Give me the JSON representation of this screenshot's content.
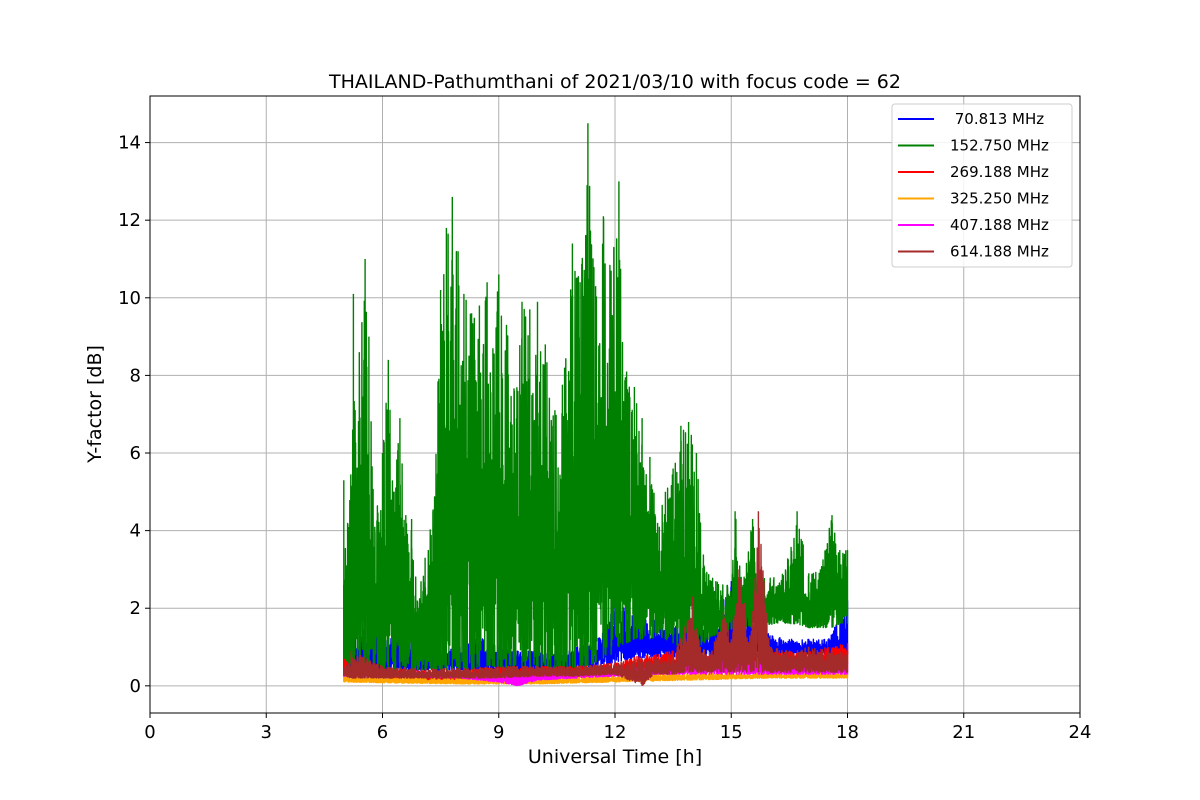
{
  "chart_data": {
    "type": "line",
    "title": "THAILAND-Pathumthani of 2021/03/10 with focus code = 62",
    "xlabel": "Universal Time [h]",
    "ylabel": "Y-factor [dB]",
    "xlim": [
      0,
      24
    ],
    "ylim": [
      -0.7,
      15.2
    ],
    "xticks": [
      0,
      3,
      6,
      9,
      12,
      15,
      18,
      21,
      24
    ],
    "yticks": [
      0,
      2,
      4,
      6,
      8,
      10,
      12,
      14
    ],
    "grid": true,
    "legend_position": "top-right",
    "series": [
      {
        "name": " 70.813 MHz",
        "color": "#0000ff",
        "envelope": {
          "x": [
            5.0,
            5.3,
            5.7,
            6.0,
            6.5,
            7.0,
            7.5,
            8.0,
            8.5,
            9.0,
            9.5,
            10.0,
            10.5,
            11.0,
            11.5,
            12.0,
            12.5,
            13.0,
            13.5,
            14.0,
            14.5,
            15.0,
            15.5,
            16.0,
            16.5,
            17.0,
            17.5,
            18.0
          ],
          "low": [
            0.4,
            0.4,
            0.4,
            0.4,
            0.4,
            0.4,
            0.4,
            0.4,
            0.4,
            0.4,
            0.4,
            0.4,
            0.4,
            0.45,
            0.5,
            0.6,
            0.7,
            0.75,
            0.75,
            0.75,
            0.75,
            0.8,
            0.8,
            0.8,
            0.8,
            0.8,
            0.8,
            0.8
          ],
          "high": [
            2.6,
            1.2,
            1.7,
            1.3,
            1.4,
            0.9,
            0.9,
            1.0,
            1.3,
            1.0,
            0.9,
            0.9,
            0.8,
            1.0,
            1.1,
            2.1,
            2.0,
            1.7,
            1.6,
            1.7,
            1.6,
            2.7,
            2.0,
            1.3,
            1.2,
            1.2,
            1.2,
            2.2
          ]
        }
      },
      {
        "name": "152.750 MHz",
        "color": "#008000",
        "envelope": {
          "x": [
            5.0,
            5.1,
            5.25,
            5.4,
            5.55,
            5.65,
            5.8,
            6.0,
            6.15,
            6.3,
            6.45,
            6.6,
            6.75,
            6.9,
            7.1,
            7.3,
            7.5,
            7.65,
            7.8,
            7.95,
            8.1,
            8.3,
            8.5,
            8.7,
            8.85,
            9.0,
            9.2,
            9.4,
            9.6,
            9.8,
            10.0,
            10.2,
            10.45,
            10.7,
            10.9,
            11.1,
            11.3,
            11.5,
            11.7,
            11.9,
            12.1,
            12.3,
            12.5,
            12.7,
            12.9,
            13.1,
            13.3,
            13.5,
            13.7,
            13.9,
            14.1,
            14.3,
            14.6,
            14.9,
            15.1,
            15.3,
            15.55,
            15.8,
            16.1,
            16.4,
            16.7,
            17.0,
            17.3,
            17.6,
            17.8,
            18.0
          ],
          "low": [
            0.4,
            0.4,
            0.4,
            0.4,
            0.4,
            0.4,
            0.4,
            0.4,
            0.4,
            0.4,
            0.4,
            0.4,
            0.4,
            0.4,
            0.4,
            0.4,
            0.4,
            0.4,
            0.4,
            0.4,
            0.4,
            0.4,
            0.5,
            0.5,
            0.5,
            0.5,
            0.4,
            0.4,
            0.4,
            0.4,
            0.4,
            0.4,
            0.4,
            0.4,
            0.4,
            0.4,
            0.5,
            0.6,
            0.7,
            0.8,
            1.0,
            1.1,
            1.2,
            1.2,
            1.2,
            1.3,
            1.2,
            1.1,
            1.0,
            1.0,
            1.0,
            1.1,
            1.3,
            1.4,
            1.5,
            1.5,
            1.5,
            1.5,
            1.6,
            1.6,
            1.6,
            1.5,
            1.5,
            1.5,
            1.6,
            1.6
          ],
          "high": [
            5.3,
            4.2,
            10.1,
            8.6,
            11.0,
            9.0,
            4.1,
            6.0,
            8.4,
            5.0,
            6.9,
            4.4,
            4.3,
            2.2,
            3.3,
            4.5,
            10.2,
            11.8,
            12.6,
            11.2,
            10.1,
            9.6,
            9.8,
            10.4,
            8.7,
            10.6,
            9.3,
            7.6,
            9.9,
            9.7,
            9.9,
            8.8,
            7.1,
            8.2,
            11.4,
            10.4,
            14.5,
            10.3,
            12.1,
            10.7,
            13.0,
            8.1,
            7.7,
            6.9,
            5.9,
            4.2,
            5.0,
            5.6,
            6.7,
            6.8,
            6.0,
            3.1,
            2.7,
            2.6,
            4.5,
            2.6,
            4.3,
            2.8,
            2.8,
            3.0,
            4.5,
            2.9,
            3.0,
            4.4,
            3.5,
            3.5
          ]
        }
      },
      {
        "name": "269.188 MHz",
        "color": "#ff0000",
        "envelope": {
          "x": [
            5.0,
            6.0,
            7.0,
            8.0,
            9.0,
            10.0,
            11.0,
            12.0,
            12.5,
            13.0,
            13.5,
            14.0,
            14.5,
            15.0,
            16.0,
            17.0,
            17.5,
            18.0
          ],
          "low": [
            0.22,
            0.2,
            0.15,
            0.1,
            0.1,
            0.15,
            0.2,
            0.3,
            0.35,
            0.4,
            0.45,
            0.45,
            0.45,
            0.5,
            0.5,
            0.5,
            0.55,
            0.55
          ],
          "high": [
            0.7,
            0.5,
            0.4,
            0.4,
            0.5,
            0.5,
            0.5,
            0.6,
            0.75,
            0.8,
            0.9,
            0.8,
            0.8,
            0.9,
            0.9,
            0.9,
            1.0,
            1.1
          ]
        }
      },
      {
        "name": "325.250 MHz",
        "color": "#ffa500",
        "envelope": {
          "x": [
            5.0,
            6.0,
            8.0,
            10.0,
            12.0,
            14.0,
            16.0,
            18.0
          ],
          "low": [
            0.1,
            0.08,
            0.05,
            0.05,
            0.1,
            0.15,
            0.2,
            0.2
          ],
          "high": [
            0.25,
            0.22,
            0.2,
            0.22,
            0.28,
            0.35,
            0.35,
            0.35
          ]
        }
      },
      {
        "name": "407.188 MHz",
        "color": "#ff00ff",
        "envelope": {
          "x": [
            5.0,
            6.0,
            8.0,
            9.0,
            9.5,
            10.0,
            12.0,
            13.0,
            14.0,
            15.0,
            16.0,
            17.0,
            18.0
          ],
          "low": [
            0.25,
            0.25,
            0.2,
            0.1,
            0.0,
            0.15,
            0.25,
            0.3,
            0.3,
            0.3,
            0.3,
            0.3,
            0.3
          ],
          "high": [
            0.35,
            0.35,
            0.35,
            0.3,
            0.3,
            0.35,
            0.4,
            0.5,
            0.6,
            0.8,
            0.7,
            0.6,
            0.6
          ]
        }
      },
      {
        "name": "614.188 MHz",
        "color": "#a52a2a",
        "envelope": {
          "x": [
            5.0,
            5.2,
            6.0,
            7.0,
            8.0,
            9.0,
            10.0,
            11.0,
            12.0,
            12.7,
            13.0,
            13.5,
            13.8,
            14.0,
            14.2,
            14.5,
            14.8,
            15.0,
            15.2,
            15.5,
            15.7,
            16.0,
            16.5,
            17.0,
            17.5,
            18.0
          ],
          "low": [
            0.25,
            0.2,
            0.2,
            0.2,
            0.2,
            0.2,
            0.25,
            0.25,
            0.3,
            0.0,
            0.3,
            0.3,
            0.35,
            0.35,
            0.35,
            0.35,
            0.35,
            0.35,
            0.35,
            0.35,
            0.35,
            0.35,
            0.35,
            0.35,
            0.35,
            0.35
          ],
          "high": [
            0.45,
            0.9,
            0.5,
            0.45,
            0.45,
            0.5,
            0.5,
            0.5,
            0.6,
            0.7,
            0.7,
            0.8,
            1.5,
            2.3,
            1.0,
            0.9,
            1.9,
            1.2,
            3.0,
            1.2,
            4.5,
            1.0,
            0.9,
            1.0,
            0.9,
            0.9
          ]
        }
      }
    ]
  }
}
